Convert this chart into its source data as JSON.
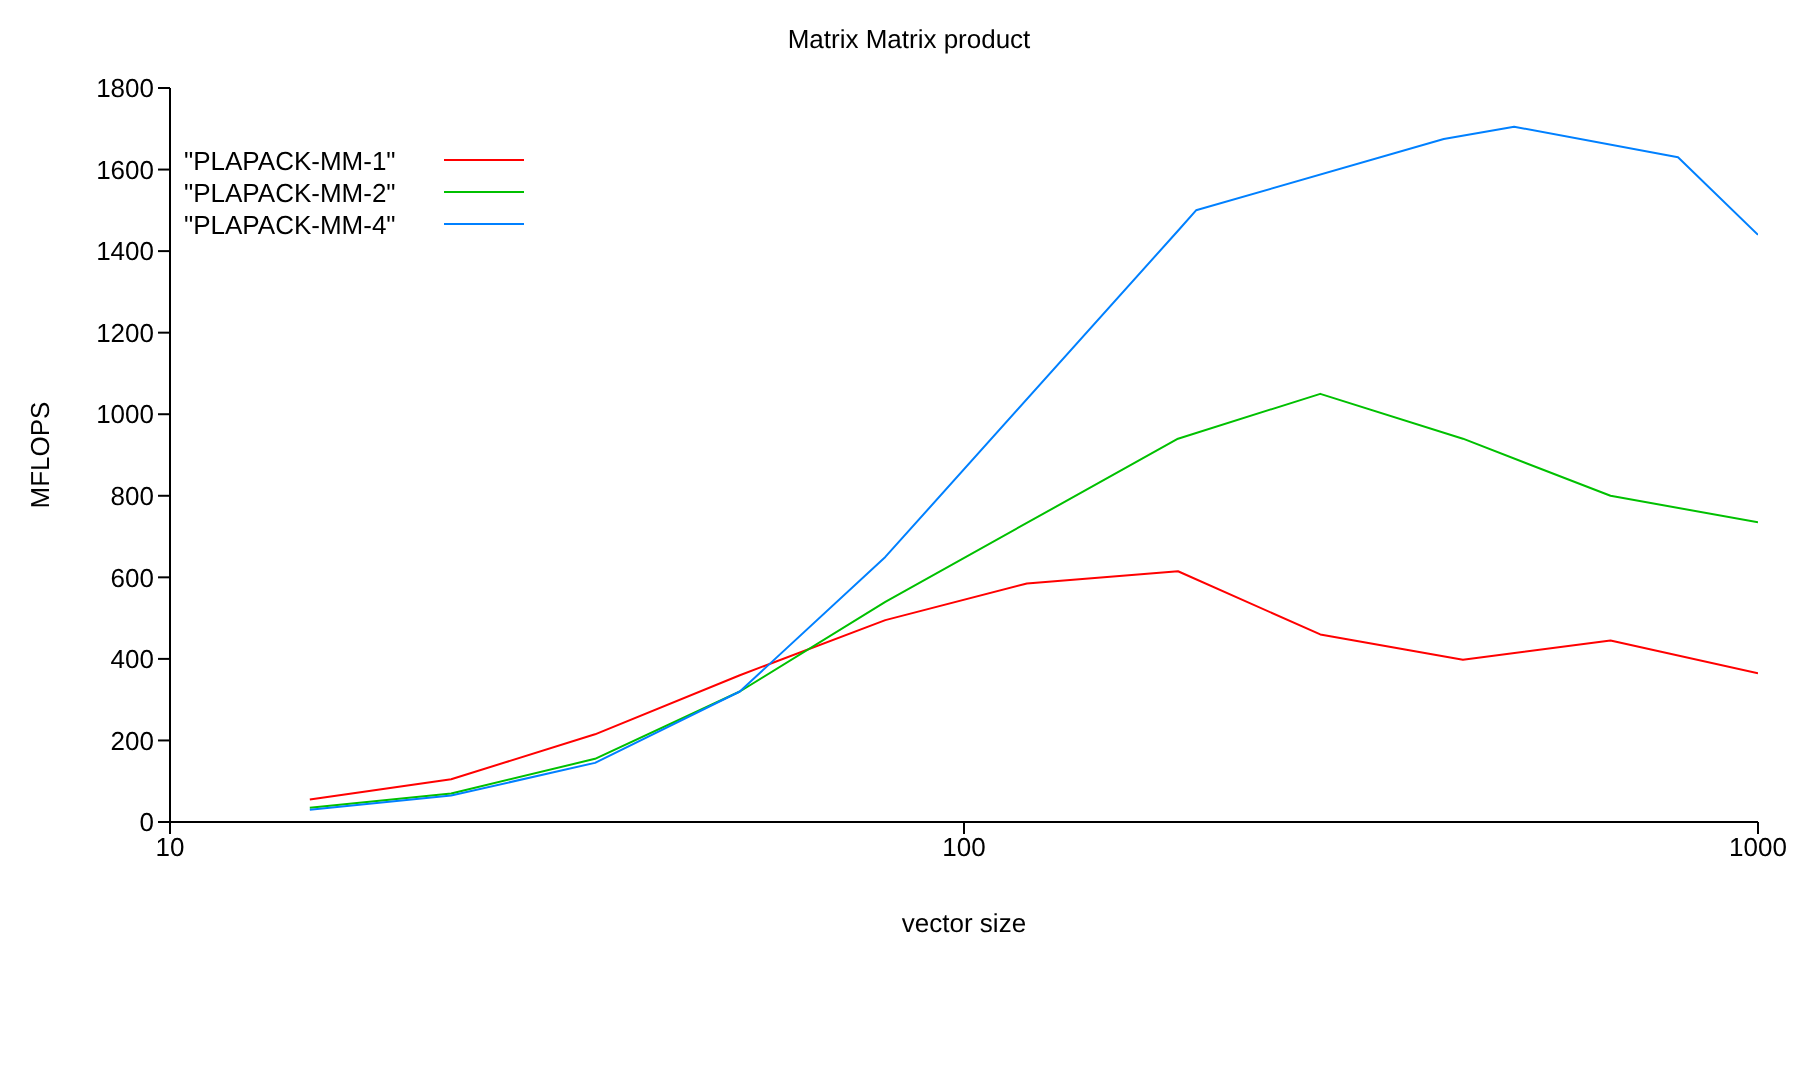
{
  "chart_data": {
    "type": "line",
    "title": "Matrix Matrix product",
    "xlabel": "vector size",
    "ylabel": "MFLOPS",
    "log": "x",
    "xlim": [
      10,
      1000
    ],
    "xticks": [
      10,
      100,
      1000
    ],
    "ylim": [
      0,
      1800
    ],
    "yticks": [
      0,
      200,
      400,
      600,
      800,
      1000,
      1200,
      1400,
      1600,
      1800
    ],
    "grid": false,
    "legend": "top left",
    "marker": "none",
    "line_style": "solid",
    "series": [
      {
        "name": "\"PLAPACK-MM-1\"",
        "color": "#ff0000",
        "x": [
          15,
          22.6,
          34.3,
          52.2,
          79.6,
          120,
          186,
          281,
          425,
          652,
          1000
        ],
        "values": [
          55,
          105,
          215,
          360,
          495,
          585,
          615,
          460,
          398,
          445,
          365
        ]
      },
      {
        "name": "\"PLAPACK-MM-2\"",
        "color": "#00c000",
        "x": [
          15,
          22.6,
          34.3,
          52.2,
          79.6,
          186,
          281,
          425,
          652,
          1000
        ],
        "values": [
          35,
          70,
          155,
          320,
          540,
          940,
          1050,
          940,
          800,
          735
        ]
      },
      {
        "name": "\"PLAPACK-MM-4\"",
        "color": "#0080ff",
        "x": [
          15,
          22.6,
          34.3,
          52.2,
          79.6,
          186,
          196,
          402,
          493,
          793,
          1000
        ],
        "values": [
          30,
          65,
          145,
          320,
          650,
          1450,
          1500,
          1675,
          1705,
          1630,
          1440
        ]
      }
    ]
  }
}
